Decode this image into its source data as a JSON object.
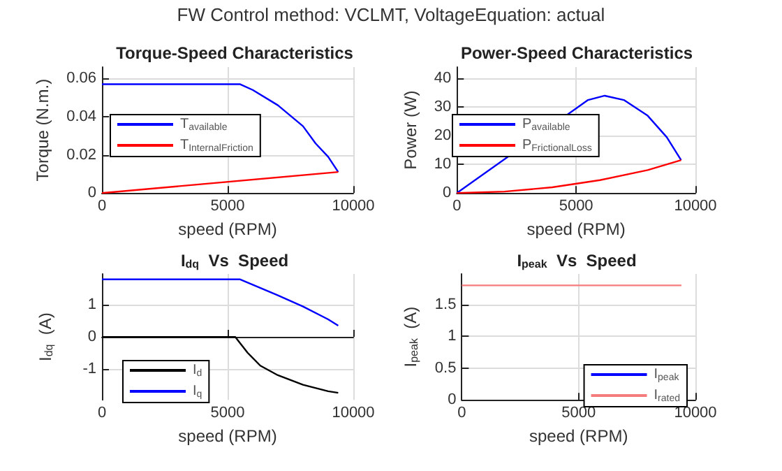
{
  "chart_data": [
    {
      "type": "line",
      "title": "Torque-Speed Characteristics",
      "xlabel": "speed (RPM)",
      "ylabel": "Torque (N.m.)",
      "annotations": [
        "FW Control method: VCLMT, VoltageEquation: actual"
      ],
      "xlim": [
        0,
        10000
      ],
      "xticks": [
        0,
        5000,
        10000
      ],
      "ylim": [
        0,
        0.066
      ],
      "yticks": [
        0,
        0.02,
        0.04,
        0.06
      ],
      "grid": true,
      "legend": "left",
      "series": [
        {
          "name": "T$_{available}$",
          "color": "#0000ff",
          "x": [
            0,
            5500,
            6000,
            7000,
            8000,
            8500,
            9000,
            9400
          ],
          "values": [
            0.057,
            0.057,
            0.054,
            0.046,
            0.035,
            0.026,
            0.019,
            0.011
          ]
        },
        {
          "name": "T$_{InternalFriction}$",
          "color": "#ff0000",
          "x": [
            0,
            9400
          ],
          "values": [
            0,
            0.011
          ]
        }
      ]
    },
    {
      "type": "line",
      "title": "Power-Speed Characteristics",
      "xlabel": "speed (RPM)",
      "ylabel": "Power (W)",
      "xlim": [
        0,
        10000
      ],
      "xticks": [
        0,
        5000,
        10000
      ],
      "ylim": [
        0,
        44
      ],
      "yticks": [
        0,
        10,
        20,
        30,
        40
      ],
      "grid": true,
      "legend": "left",
      "series": [
        {
          "name": "P$_{available}$",
          "color": "#0000ff",
          "x": [
            0,
            5500,
            6200,
            7000,
            8000,
            8800,
            9400
          ],
          "values": [
            0,
            32.5,
            34,
            32.5,
            27,
            19.5,
            11.5
          ]
        },
        {
          "name": "P$_{FrictionalLoss}$",
          "color": "#ff0000",
          "x": [
            0,
            2000,
            4000,
            6000,
            8000,
            9400
          ],
          "values": [
            0,
            0.5,
            2,
            4.5,
            8,
            11.5
          ]
        }
      ]
    },
    {
      "type": "line",
      "title": "I$_{dq}$  Vs  Speed",
      "xlabel": "speed (RPM)",
      "ylabel": "I$_{dq}$  (A)",
      "xlim": [
        0,
        10000
      ],
      "xticks": [
        0,
        5000,
        10000
      ],
      "ylim": [
        -1.97,
        1.97
      ],
      "yticks": [
        -1,
        0,
        1
      ],
      "grid": true,
      "legend": "bottom left",
      "series": [
        {
          "name": "I$_{d}$",
          "color": "#000000",
          "x": [
            0,
            5300,
            5800,
            6300,
            7000,
            8000,
            9000,
            9400
          ],
          "values": [
            0,
            0,
            -0.5,
            -0.9,
            -1.2,
            -1.5,
            -1.7,
            -1.75
          ]
        },
        {
          "name": "I$_{q}$",
          "color": "#0000ff",
          "x": [
            0,
            5500,
            7000,
            8000,
            9000,
            9400
          ],
          "values": [
            1.8,
            1.8,
            1.3,
            0.95,
            0.55,
            0.35
          ]
        }
      ]
    },
    {
      "type": "line",
      "title": "I$_{peak}$  Vs  Speed",
      "xlabel": "speed (RPM)",
      "ylabel": "I$_{peak}$  (A)",
      "xlim": [
        0,
        10000
      ],
      "xticks": [
        0,
        5000,
        10000
      ],
      "ylim": [
        0,
        1.98
      ],
      "yticks": [
        0,
        0.5,
        1,
        1.5
      ],
      "grid": true,
      "legend": "bottom right",
      "series": [
        {
          "name": "I$_{peak}$",
          "color": "#0000ff"
        },
        {
          "name": "I$_{rated}$",
          "color": "#f47c7c",
          "x": [
            0,
            9400
          ],
          "values": [
            1.8,
            1.8
          ]
        }
      ]
    }
  ]
}
